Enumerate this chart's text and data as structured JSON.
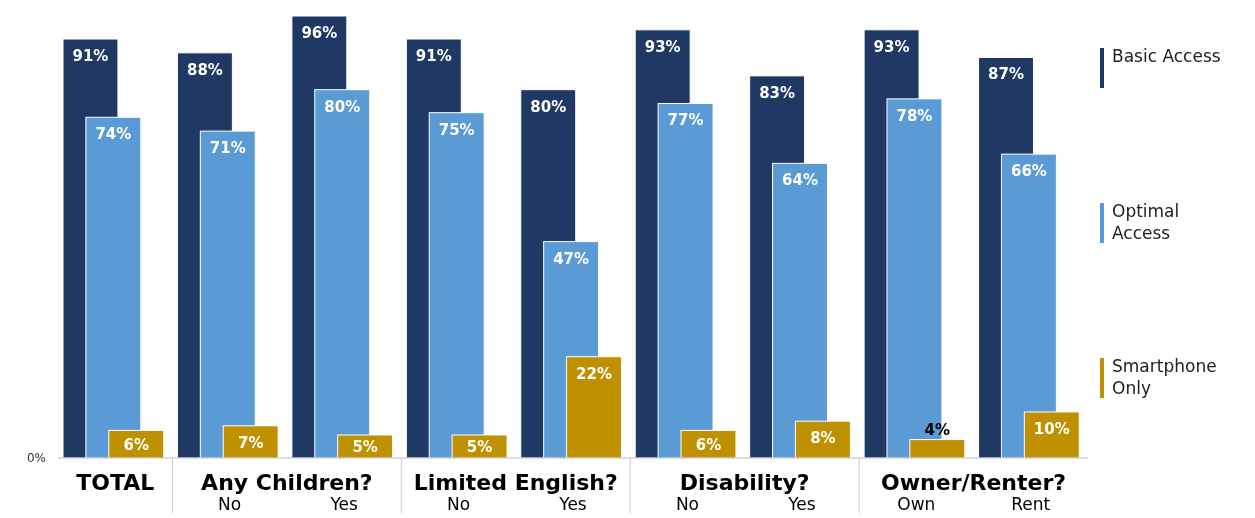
{
  "chart_data": {
    "type": "bar",
    "categories": [
      "TOTAL",
      "No",
      "Yes",
      "No",
      "Yes",
      "No",
      "Yes",
      "Own",
      "Rent"
    ],
    "series": [
      {
        "name": "Basic Access",
        "color": "#1f3864",
        "values": [
          91,
          88,
          96,
          91,
          80,
          93,
          83,
          93,
          87
        ],
        "value_labels": [
          "91%",
          "88%",
          "96%",
          "91%",
          "80%",
          "93%",
          "83%",
          "93%",
          "87%"
        ]
      },
      {
        "name": "Optimal Access",
        "color": "#5b9bd5",
        "values": [
          74,
          71,
          80,
          75,
          47,
          77,
          64,
          78,
          66
        ],
        "value_labels": [
          "74%",
          "71%",
          "80%",
          "75%",
          "47%",
          "77%",
          "64%",
          "78%",
          "66%"
        ]
      },
      {
        "name": "Smartphone Only",
        "color": "#bf9000",
        "values": [
          6,
          7,
          5,
          5,
          22,
          6,
          8,
          4,
          10
        ],
        "value_labels": [
          "6%",
          "7%",
          "5%",
          "5%",
          "22%",
          "6%",
          "8%",
          "4%",
          "10%"
        ]
      }
    ],
    "annotations": [
      "0%",
      "Any Children?",
      "Limited English?",
      "Disability?",
      "Owner/Renter?"
    ],
    "legend": "right"
  }
}
